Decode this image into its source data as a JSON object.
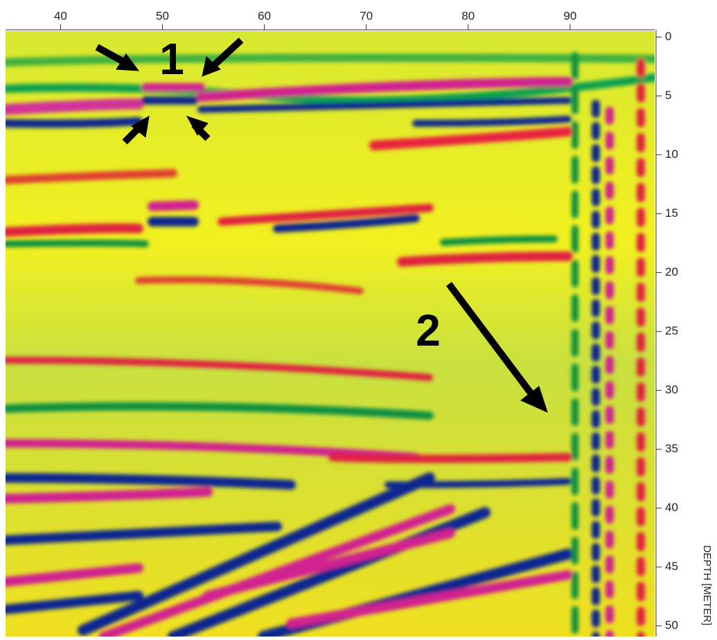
{
  "figure": {
    "x_axis": {
      "lim": [
        34.6,
        98.3
      ],
      "ticks": [
        40,
        50,
        60,
        70,
        80,
        90
      ]
    },
    "y_axis": {
      "label": "DEPTH [METER]",
      "lim": [
        -0.5,
        50.9
      ],
      "ticks": [
        0,
        5,
        10,
        15,
        20,
        25,
        30,
        35,
        40,
        45,
        50
      ]
    },
    "annotations": [
      "1",
      "2"
    ]
  }
}
